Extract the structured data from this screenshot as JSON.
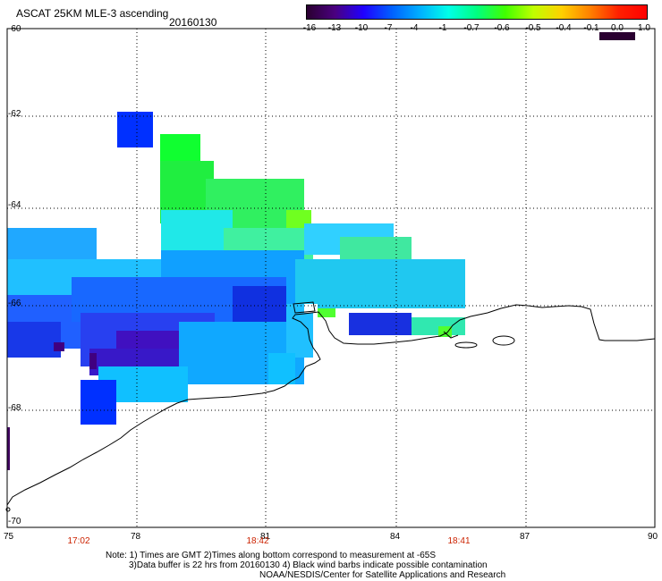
{
  "header": {
    "title": "ASCAT 25KM MLE-3 ascending",
    "date": "20160130"
  },
  "colorbar": {
    "labels": [
      "-16",
      "-13",
      "-10",
      "-7",
      "-4",
      "-1",
      "-0.7",
      "-0.6",
      "-0.5",
      "-0.4",
      "-0.1",
      "0.0",
      "1.0"
    ],
    "gradient": [
      "#2a0030",
      "#4a0080",
      "#2000ff",
      "#0060ff",
      "#00b0ff",
      "#00ffe8",
      "#00ff80",
      "#40ff00",
      "#c0ff00",
      "#ffd000",
      "#ff8000",
      "#ff2000",
      "#ff0000"
    ],
    "nodata_color": "#2a0030"
  },
  "map": {
    "lat_labels": [
      "-60",
      "-62",
      "-64",
      "-66",
      "-68",
      "-70"
    ],
    "lon_labels": [
      "75",
      "78",
      "81",
      "84",
      "87",
      "90"
    ],
    "pass_times": [
      "17:02",
      "18:42",
      "18:41"
    ]
  },
  "notes": {
    "line1": "Note: 1) Times are GMT 2)Times along bottom correspond to measurement at -65S",
    "line2": "3)Data buffer is 22 hrs from 20160130 4) Black wind barbs indicate possible contamination",
    "line3": "NOAA/NESDIS/Center for Satellite Applications and Research"
  },
  "colors": {
    "grid": "#000000",
    "coast": "#000000",
    "time_label": "#cc2200"
  }
}
